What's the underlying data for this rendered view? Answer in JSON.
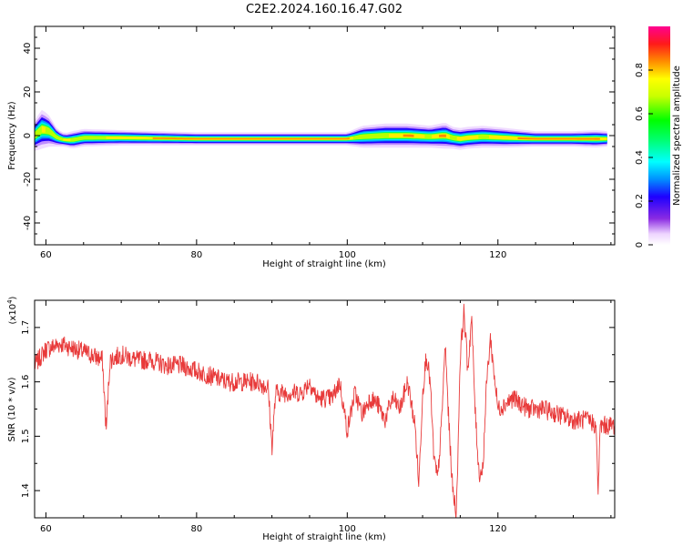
{
  "title": "C2E2.2024.160.16.47.G02",
  "chart_data": [
    {
      "type": "heatmap",
      "xlabel": "Height of straight line (km)",
      "ylabel": "Frequency (Hz)",
      "xlim": [
        58.5,
        135.5
      ],
      "ylim": [
        -50,
        50
      ],
      "x_ticks": [
        60,
        80,
        100,
        120
      ],
      "y_ticks": [
        -40,
        -20,
        0,
        20,
        40
      ],
      "colorbar": {
        "label": "Normalized spectral amplitude",
        "range": [
          0.0,
          1.0
        ],
        "ticks": [
          0.0,
          0.2,
          0.4,
          0.6,
          0.8
        ],
        "colormap": "rainbow (white-violet-blue-cyan-green-yellow-red-magenta)"
      },
      "ridge": {
        "x": [
          58.5,
          59.5,
          60.5,
          61.5,
          62.5,
          63.5,
          65,
          70,
          80,
          90,
          100,
          102,
          105,
          108,
          111,
          113,
          114,
          115,
          116,
          118,
          121,
          125,
          130,
          133,
          134.5
        ],
        "center_freq": [
          0,
          3,
          2,
          -1,
          -2,
          -2,
          -1,
          -1,
          -1.5,
          -1.5,
          -1.5,
          -0.5,
          0,
          0,
          -0.5,
          0,
          -1,
          -1.5,
          -1,
          -0.5,
          -1,
          -1.5,
          -1.5,
          -1.5,
          -1.5
        ],
        "width": [
          7,
          9,
          7,
          4,
          3,
          4,
          4,
          3.5,
          3,
          3,
          3,
          5,
          5.5,
          5.5,
          5,
          6,
          5,
          5,
          5,
          5,
          4.5,
          3.5,
          3.5,
          4,
          3.5
        ],
        "peak_amp": [
          0.7,
          0.8,
          0.75,
          0.7,
          0.8,
          0.75,
          0.7,
          0.8,
          0.85,
          0.85,
          0.85,
          0.7,
          0.75,
          0.85,
          0.75,
          0.9,
          0.75,
          0.8,
          0.8,
          0.75,
          0.8,
          0.85,
          0.85,
          0.85,
          0.8
        ]
      }
    },
    {
      "type": "line",
      "xlabel": "Height of straight line (km)",
      "ylabel": "SNR (10 * v/v)",
      "y_multiplier": "(x10^4)",
      "xlim": [
        58.5,
        135.5
      ],
      "ylim": [
        1.35,
        1.75
      ],
      "x_ticks": [
        60,
        80,
        100,
        120
      ],
      "y_ticks": [
        1.4,
        1.5,
        1.6,
        1.7
      ],
      "color": "#e83a3a",
      "series": [
        {
          "x": [
            58.5,
            60,
            62,
            64,
            66,
            67.5,
            68,
            68.5,
            70,
            72,
            74,
            76,
            78,
            80,
            82,
            84,
            86,
            88,
            89.5,
            90,
            90.5,
            92,
            94,
            95,
            96,
            98,
            99,
            100,
            101,
            102,
            103,
            104,
            105,
            106,
            107,
            108,
            109,
            109.5,
            110,
            110.5,
            111,
            111.5,
            112,
            112.5,
            113,
            113.5,
            114,
            114.5,
            115,
            115.5,
            116,
            116.5,
            117,
            117.5,
            118,
            118.5,
            119,
            120,
            122,
            124,
            126,
            128,
            130,
            132,
            133,
            133.3,
            133.6,
            134,
            135.5
          ],
          "y": [
            1.63,
            1.66,
            1.67,
            1.66,
            1.65,
            1.64,
            1.51,
            1.64,
            1.65,
            1.64,
            1.64,
            1.63,
            1.63,
            1.62,
            1.61,
            1.6,
            1.6,
            1.6,
            1.59,
            1.48,
            1.58,
            1.58,
            1.58,
            1.6,
            1.57,
            1.57,
            1.6,
            1.51,
            1.58,
            1.54,
            1.57,
            1.56,
            1.53,
            1.57,
            1.55,
            1.6,
            1.52,
            1.41,
            1.58,
            1.65,
            1.6,
            1.46,
            1.42,
            1.52,
            1.67,
            1.52,
            1.4,
            1.36,
            1.65,
            1.73,
            1.62,
            1.72,
            1.54,
            1.43,
            1.44,
            1.6,
            1.68,
            1.55,
            1.57,
            1.55,
            1.55,
            1.54,
            1.53,
            1.53,
            1.52,
            1.4,
            1.52,
            1.52,
            1.52
          ]
        }
      ]
    }
  ]
}
